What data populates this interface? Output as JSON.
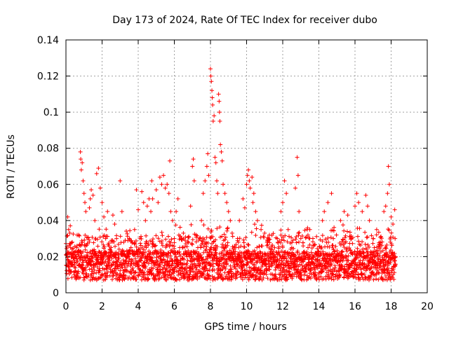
{
  "chart_data": {
    "type": "scatter",
    "title": "Day 173 of 2024, Rate Of TEC Index for receiver dubo",
    "xlabel": "GPS time / hours",
    "ylabel": "ROTI / TECUs",
    "xlim": [
      0,
      20
    ],
    "ylim": [
      0,
      0.14
    ],
    "x_ticks": [
      "0",
      "2",
      "4",
      "6",
      "8",
      "10",
      "12",
      "14",
      "16",
      "18",
      "20"
    ],
    "y_ticks": [
      "0",
      "0.02",
      "0.04",
      "0.06",
      "0.08",
      "0.1",
      "0.12",
      "0.14"
    ],
    "x_tick_values": [
      0,
      2,
      4,
      6,
      8,
      10,
      12,
      14,
      16,
      18,
      20
    ],
    "y_tick_values": [
      0,
      0.02,
      0.04,
      0.06,
      0.08,
      0.1,
      0.12,
      0.14
    ],
    "grid": true,
    "marker": "plus",
    "marker_color": "#ff0000",
    "data_span_hours": [
      0,
      18.25
    ],
    "series": [
      {
        "points": [
          [
            0.05,
            0.015
          ],
          [
            0.1,
            0.042
          ],
          [
            0.15,
            0.035
          ],
          [
            0.2,
            0.012
          ],
          [
            0.3,
            0.022
          ],
          [
            0.35,
            0.028
          ],
          [
            0.45,
            0.018
          ],
          [
            0.5,
            0.012
          ],
          [
            0.6,
            0.025
          ],
          [
            0.7,
            0.032
          ],
          [
            0.8,
            0.078
          ],
          [
            0.82,
            0.074
          ],
          [
            0.85,
            0.068
          ],
          [
            0.9,
            0.072
          ],
          [
            0.95,
            0.062
          ],
          [
            1.0,
            0.055
          ],
          [
            1.05,
            0.05
          ],
          [
            1.1,
            0.045
          ],
          [
            1.2,
            0.02
          ],
          [
            1.3,
            0.047
          ],
          [
            1.35,
            0.052
          ],
          [
            1.4,
            0.057
          ],
          [
            1.5,
            0.054
          ],
          [
            1.6,
            0.04
          ],
          [
            1.7,
            0.066
          ],
          [
            1.8,
            0.069
          ],
          [
            1.9,
            0.058
          ],
          [
            2.0,
            0.05
          ],
          [
            2.1,
            0.042
          ],
          [
            2.2,
            0.03
          ],
          [
            2.3,
            0.045
          ],
          [
            2.4,
            0.02
          ],
          [
            2.5,
            0.025
          ],
          [
            2.6,
            0.043
          ],
          [
            2.7,
            0.038
          ],
          [
            2.8,
            0.03
          ],
          [
            3.0,
            0.062
          ],
          [
            3.1,
            0.045
          ],
          [
            3.2,
            0.028
          ],
          [
            3.4,
            0.02
          ],
          [
            3.5,
            0.03
          ],
          [
            3.6,
            0.025
          ],
          [
            3.8,
            0.035
          ],
          [
            3.9,
            0.057
          ],
          [
            4.0,
            0.046
          ],
          [
            4.1,
            0.02
          ],
          [
            4.2,
            0.056
          ],
          [
            4.3,
            0.05
          ],
          [
            4.4,
            0.04
          ],
          [
            4.5,
            0.048
          ],
          [
            4.6,
            0.052
          ],
          [
            4.7,
            0.045
          ],
          [
            4.75,
            0.062
          ],
          [
            4.8,
            0.052
          ],
          [
            5.0,
            0.057
          ],
          [
            5.1,
            0.05
          ],
          [
            5.2,
            0.064
          ],
          [
            5.3,
            0.06
          ],
          [
            5.4,
            0.065
          ],
          [
            5.5,
            0.058
          ],
          [
            5.6,
            0.06
          ],
          [
            5.7,
            0.055
          ],
          [
            5.75,
            0.073
          ],
          [
            5.8,
            0.045
          ],
          [
            5.9,
            0.04
          ],
          [
            6.0,
            0.03
          ],
          [
            6.1,
            0.045
          ],
          [
            6.2,
            0.052
          ],
          [
            6.3,
            0.025
          ],
          [
            6.5,
            0.033
          ],
          [
            6.7,
            0.02
          ],
          [
            6.9,
            0.048
          ],
          [
            7.0,
            0.07
          ],
          [
            7.05,
            0.074
          ],
          [
            7.1,
            0.062
          ],
          [
            7.2,
            0.032
          ],
          [
            7.3,
            0.025
          ],
          [
            7.4,
            0.03
          ],
          [
            7.5,
            0.04
          ],
          [
            7.6,
            0.055
          ],
          [
            7.7,
            0.062
          ],
          [
            7.8,
            0.07
          ],
          [
            7.85,
            0.077
          ],
          [
            7.9,
            0.065
          ],
          [
            8.0,
            0.124
          ],
          [
            8.02,
            0.12
          ],
          [
            8.05,
            0.117
          ],
          [
            8.08,
            0.112
          ],
          [
            8.1,
            0.108
          ],
          [
            8.12,
            0.104
          ],
          [
            8.15,
            0.095
          ],
          [
            8.2,
            0.098
          ],
          [
            8.25,
            0.075
          ],
          [
            8.3,
            0.072
          ],
          [
            8.35,
            0.062
          ],
          [
            8.4,
            0.055
          ],
          [
            8.45,
            0.11
          ],
          [
            8.48,
            0.106
          ],
          [
            8.5,
            0.1
          ],
          [
            8.52,
            0.095
          ],
          [
            8.55,
            0.082
          ],
          [
            8.6,
            0.078
          ],
          [
            8.65,
            0.073
          ],
          [
            8.7,
            0.06
          ],
          [
            8.8,
            0.055
          ],
          [
            8.9,
            0.05
          ],
          [
            9.0,
            0.045
          ],
          [
            9.1,
            0.04
          ],
          [
            9.2,
            0.033
          ],
          [
            9.4,
            0.025
          ],
          [
            9.5,
            0.03
          ],
          [
            9.6,
            0.04
          ],
          [
            9.8,
            0.052
          ],
          [
            9.9,
            0.047
          ],
          [
            10.0,
            0.06
          ],
          [
            10.05,
            0.065
          ],
          [
            10.1,
            0.068
          ],
          [
            10.15,
            0.062
          ],
          [
            10.2,
            0.058
          ],
          [
            10.3,
            0.064
          ],
          [
            10.35,
            0.05
          ],
          [
            10.4,
            0.055
          ],
          [
            10.5,
            0.045
          ],
          [
            10.6,
            0.04
          ],
          [
            10.8,
            0.035
          ],
          [
            11.0,
            0.033
          ],
          [
            11.2,
            0.03
          ],
          [
            11.4,
            0.024
          ],
          [
            11.5,
            0.02
          ],
          [
            11.7,
            0.03
          ],
          [
            11.9,
            0.045
          ],
          [
            12.0,
            0.05
          ],
          [
            12.1,
            0.062
          ],
          [
            12.2,
            0.055
          ],
          [
            12.3,
            0.035
          ],
          [
            12.5,
            0.025
          ],
          [
            12.7,
            0.058
          ],
          [
            12.8,
            0.075
          ],
          [
            12.85,
            0.065
          ],
          [
            12.9,
            0.045
          ],
          [
            13.0,
            0.03
          ],
          [
            13.2,
            0.02
          ],
          [
            13.4,
            0.025
          ],
          [
            13.5,
            0.035
          ],
          [
            13.7,
            0.02
          ],
          [
            13.9,
            0.015
          ],
          [
            14.1,
            0.012
          ],
          [
            14.2,
            0.04
          ],
          [
            14.3,
            0.045
          ],
          [
            14.5,
            0.05
          ],
          [
            14.7,
            0.055
          ],
          [
            14.8,
            0.03
          ],
          [
            15.0,
            0.02
          ],
          [
            15.2,
            0.04
          ],
          [
            15.4,
            0.045
          ],
          [
            15.6,
            0.043
          ],
          [
            15.8,
            0.03
          ],
          [
            16.0,
            0.048
          ],
          [
            16.1,
            0.055
          ],
          [
            16.2,
            0.05
          ],
          [
            16.4,
            0.045
          ],
          [
            16.6,
            0.054
          ],
          [
            16.7,
            0.048
          ],
          [
            16.8,
            0.04
          ],
          [
            17.0,
            0.03
          ],
          [
            17.2,
            0.035
          ],
          [
            17.4,
            0.028
          ],
          [
            17.6,
            0.045
          ],
          [
            17.7,
            0.048
          ],
          [
            17.8,
            0.055
          ],
          [
            17.85,
            0.07
          ],
          [
            17.9,
            0.06
          ],
          [
            18.0,
            0.042
          ],
          [
            18.1,
            0.038
          ],
          [
            18.2,
            0.046
          ],
          [
            18.22,
            0.03
          ]
        ]
      }
    ]
  }
}
